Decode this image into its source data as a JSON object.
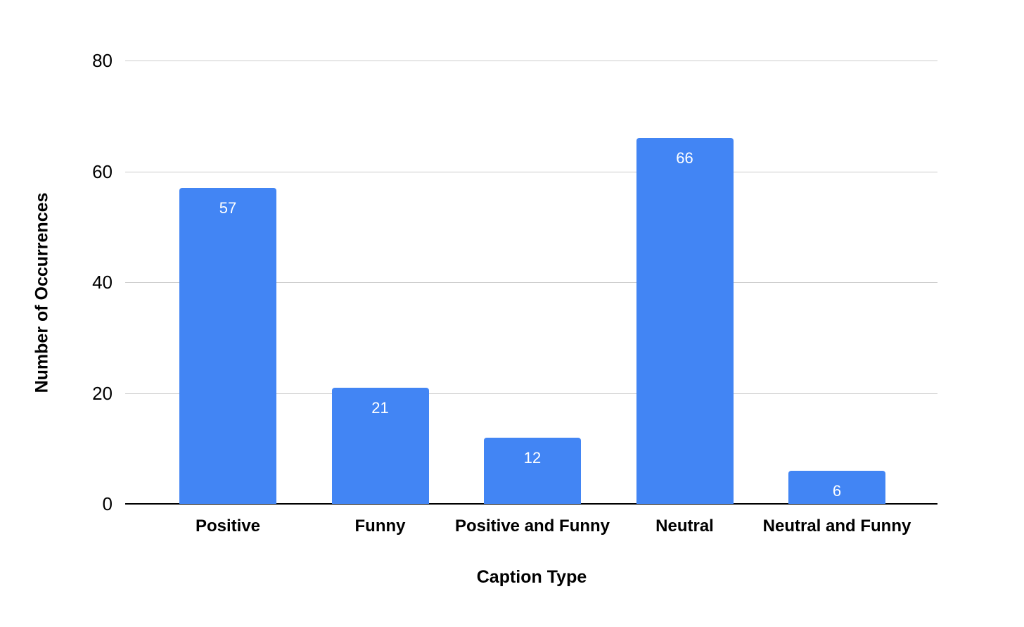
{
  "chart_data": {
    "type": "bar",
    "title": "",
    "categories": [
      "Positive",
      "Funny",
      "Positive and Funny",
      "Neutral",
      "Neutral and Funny"
    ],
    "values": [
      57,
      21,
      12,
      66,
      6
    ],
    "value_labels": [
      "57",
      "21",
      "12",
      "66",
      "6"
    ],
    "xlabel": "Caption Type",
    "ylabel": "Number of Occurrences",
    "ylim": [
      0,
      80
    ],
    "yticks": [
      0,
      20,
      40,
      60,
      80
    ],
    "grid": true,
    "legend": "none",
    "colors": {
      "bar": "#4285F4",
      "value_label": "#FFFFFF",
      "gridline": "#CCCCCC",
      "axis_line": "#000000",
      "text": "#000000"
    }
  }
}
